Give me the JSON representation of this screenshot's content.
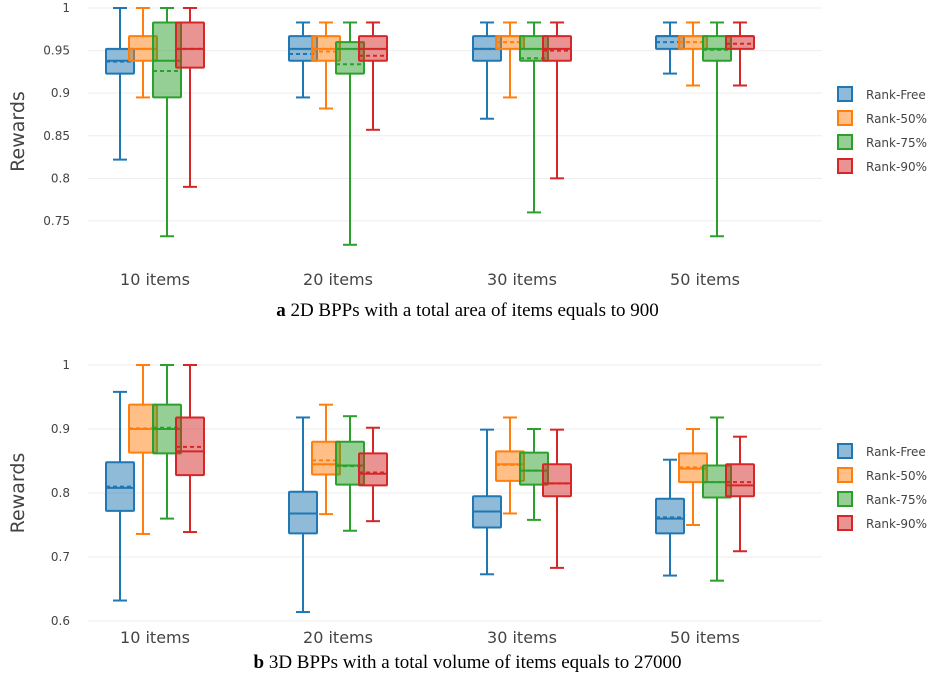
{
  "colors": {
    "Rank-Free": "#1f77b4",
    "Rank-50%": "#ff7f0e",
    "Rank-75%": "#2ca02c",
    "Rank-90%": "#d62728"
  },
  "chart_data": [
    {
      "type": "box",
      "panel_label": "a",
      "caption": "2D BPPs with a total area of items equals to 900",
      "ylabel": "Rewards",
      "ylim": [
        0.71,
        1.0
      ],
      "yticks": [
        0.75,
        0.8,
        0.85,
        0.9,
        0.95,
        1
      ],
      "ytick_labels": [
        "0.75",
        "0.8",
        "0.85",
        "0.9",
        "0.95",
        "1"
      ],
      "grid": true,
      "legend_position": "right",
      "categories": [
        "10 items",
        "20 items",
        "30 items",
        "50 items"
      ],
      "series": [
        {
          "name": "Rank-Free",
          "boxes": [
            {
              "min": 0.822,
              "q1": 0.923,
              "median": 0.938,
              "q3": 0.952,
              "max": 1.0,
              "mean": 0.937
            },
            {
              "min": 0.895,
              "q1": 0.938,
              "median": 0.952,
              "q3": 0.967,
              "max": 0.983,
              "mean": 0.946
            },
            {
              "min": 0.87,
              "q1": 0.938,
              "median": 0.952,
              "q3": 0.967,
              "max": 0.983,
              "mean": 0.952
            },
            {
              "min": 0.923,
              "q1": 0.952,
              "median": 0.967,
              "q3": 0.967,
              "max": 0.983,
              "mean": 0.96
            }
          ]
        },
        {
          "name": "Rank-50%",
          "boxes": [
            {
              "min": 0.895,
              "q1": 0.938,
              "median": 0.952,
              "q3": 0.967,
              "max": 1.0,
              "mean": 0.952
            },
            {
              "min": 0.882,
              "q1": 0.938,
              "median": 0.952,
              "q3": 0.967,
              "max": 0.983,
              "mean": 0.949
            },
            {
              "min": 0.895,
              "q1": 0.952,
              "median": 0.967,
              "q3": 0.967,
              "max": 0.983,
              "mean": 0.96
            },
            {
              "min": 0.909,
              "q1": 0.952,
              "median": 0.967,
              "q3": 0.967,
              "max": 0.983,
              "mean": 0.96
            }
          ]
        },
        {
          "name": "Rank-75%",
          "boxes": [
            {
              "min": 0.732,
              "q1": 0.895,
              "median": 0.938,
              "q3": 0.983,
              "max": 1.0,
              "mean": 0.926
            },
            {
              "min": 0.722,
              "q1": 0.923,
              "median": 0.952,
              "q3": 0.96,
              "max": 0.983,
              "mean": 0.934
            },
            {
              "min": 0.76,
              "q1": 0.938,
              "median": 0.952,
              "q3": 0.967,
              "max": 0.983,
              "mean": 0.941
            },
            {
              "min": 0.732,
              "q1": 0.938,
              "median": 0.952,
              "q3": 0.967,
              "max": 0.983,
              "mean": 0.951
            }
          ]
        },
        {
          "name": "Rank-90%",
          "boxes": [
            {
              "min": 0.79,
              "q1": 0.93,
              "median": 0.952,
              "q3": 0.983,
              "max": 1.0,
              "mean": 0.952
            },
            {
              "min": 0.857,
              "q1": 0.938,
              "median": 0.952,
              "q3": 0.967,
              "max": 0.983,
              "mean": 0.944
            },
            {
              "min": 0.8,
              "q1": 0.938,
              "median": 0.952,
              "q3": 0.967,
              "max": 0.983,
              "mean": 0.95
            },
            {
              "min": 0.909,
              "q1": 0.952,
              "median": 0.967,
              "q3": 0.967,
              "max": 0.983,
              "mean": 0.958
            }
          ]
        }
      ]
    },
    {
      "type": "box",
      "panel_label": "b",
      "caption": "3D BPPs with a total volume of items equals to 27000",
      "ylabel": "Rewards",
      "ylim": [
        0.6,
        1.0
      ],
      "yticks": [
        0.6,
        0.7,
        0.8,
        0.9,
        1
      ],
      "ytick_labels": [
        "0.6",
        "0.7",
        "0.8",
        "0.9",
        "1"
      ],
      "grid": true,
      "legend_position": "right",
      "categories": [
        "10 items",
        "20 items",
        "30 items",
        "50 items"
      ],
      "series": [
        {
          "name": "Rank-Free",
          "boxes": [
            {
              "min": 0.632,
              "q1": 0.772,
              "median": 0.808,
              "q3": 0.848,
              "max": 0.958,
              "mean": 0.81
            },
            {
              "min": 0.614,
              "q1": 0.737,
              "median": 0.768,
              "q3": 0.802,
              "max": 0.918,
              "mean": 0.768
            },
            {
              "min": 0.673,
              "q1": 0.746,
              "median": 0.771,
              "q3": 0.795,
              "max": 0.899,
              "mean": 0.771
            },
            {
              "min": 0.671,
              "q1": 0.737,
              "median": 0.76,
              "q3": 0.791,
              "max": 0.852,
              "mean": 0.762
            }
          ]
        },
        {
          "name": "Rank-50%",
          "boxes": [
            {
              "min": 0.736,
              "q1": 0.863,
              "median": 0.9,
              "q3": 0.938,
              "max": 1.0,
              "mean": 0.901
            },
            {
              "min": 0.767,
              "q1": 0.829,
              "median": 0.845,
              "q3": 0.88,
              "max": 0.938,
              "mean": 0.851
            },
            {
              "min": 0.768,
              "q1": 0.819,
              "median": 0.845,
              "q3": 0.865,
              "max": 0.918,
              "mean": 0.844
            },
            {
              "min": 0.75,
              "q1": 0.817,
              "median": 0.838,
              "q3": 0.862,
              "max": 0.9,
              "mean": 0.84
            }
          ]
        },
        {
          "name": "Rank-75%",
          "boxes": [
            {
              "min": 0.76,
              "q1": 0.862,
              "median": 0.9,
              "q3": 0.938,
              "max": 1.0,
              "mean": 0.902
            },
            {
              "min": 0.741,
              "q1": 0.813,
              "median": 0.843,
              "q3": 0.88,
              "max": 0.92,
              "mean": 0.842
            },
            {
              "min": 0.758,
              "q1": 0.813,
              "median": 0.835,
              "q3": 0.863,
              "max": 0.9,
              "mean": 0.835
            },
            {
              "min": 0.663,
              "q1": 0.793,
              "median": 0.817,
              "q3": 0.843,
              "max": 0.918,
              "mean": 0.817
            }
          ]
        },
        {
          "name": "Rank-90%",
          "boxes": [
            {
              "min": 0.739,
              "q1": 0.828,
              "median": 0.865,
              "q3": 0.918,
              "max": 1.0,
              "mean": 0.872
            },
            {
              "min": 0.756,
              "q1": 0.812,
              "median": 0.83,
              "q3": 0.862,
              "max": 0.902,
              "mean": 0.832
            },
            {
              "min": 0.683,
              "q1": 0.795,
              "median": 0.815,
              "q3": 0.845,
              "max": 0.899,
              "mean": 0.815
            },
            {
              "min": 0.709,
              "q1": 0.795,
              "median": 0.812,
              "q3": 0.845,
              "max": 0.888,
              "mean": 0.817
            }
          ]
        }
      ]
    }
  ]
}
